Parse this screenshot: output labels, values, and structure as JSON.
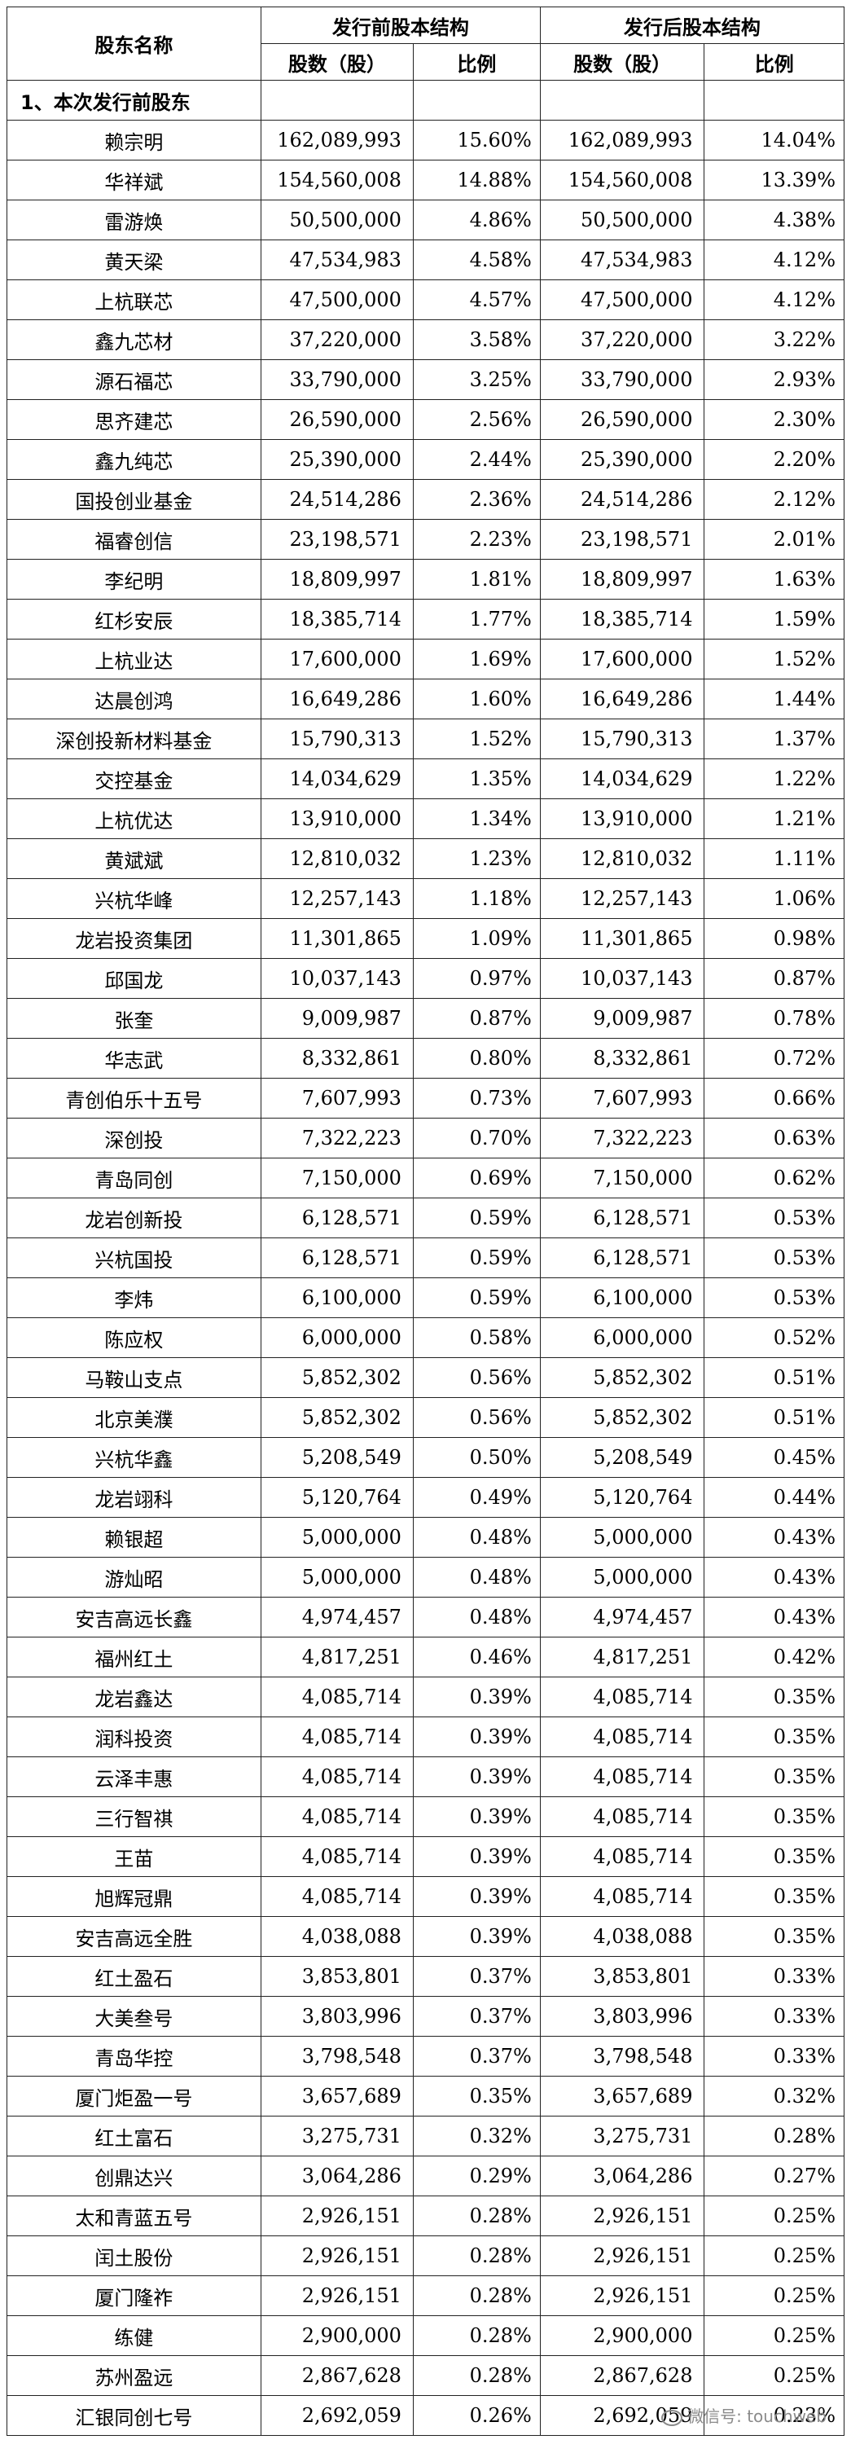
{
  "header": {
    "holder_name": "股东名称",
    "before": "发行前股本结构",
    "after": "发行后股本结构",
    "shares": "股数（股）",
    "ratio": "比例"
  },
  "section_label": "1、本次发行前股东",
  "rows": [
    {
      "name": "赖宗明",
      "pre_shares": "162,089,993",
      "pre_ratio": "15.60%",
      "post_shares": "162,089,993",
      "post_ratio": "14.04%"
    },
    {
      "name": "华祥斌",
      "pre_shares": "154,560,008",
      "pre_ratio": "14.88%",
      "post_shares": "154,560,008",
      "post_ratio": "13.39%"
    },
    {
      "name": "雷游焕",
      "pre_shares": "50,500,000",
      "pre_ratio": "4.86%",
      "post_shares": "50,500,000",
      "post_ratio": "4.38%"
    },
    {
      "name": "黄天梁",
      "pre_shares": "47,534,983",
      "pre_ratio": "4.58%",
      "post_shares": "47,534,983",
      "post_ratio": "4.12%"
    },
    {
      "name": "上杭联芯",
      "pre_shares": "47,500,000",
      "pre_ratio": "4.57%",
      "post_shares": "47,500,000",
      "post_ratio": "4.12%"
    },
    {
      "name": "鑫九芯材",
      "pre_shares": "37,220,000",
      "pre_ratio": "3.58%",
      "post_shares": "37,220,000",
      "post_ratio": "3.22%"
    },
    {
      "name": "源石福芯",
      "pre_shares": "33,790,000",
      "pre_ratio": "3.25%",
      "post_shares": "33,790,000",
      "post_ratio": "2.93%"
    },
    {
      "name": "思齐建芯",
      "pre_shares": "26,590,000",
      "pre_ratio": "2.56%",
      "post_shares": "26,590,000",
      "post_ratio": "2.30%"
    },
    {
      "name": "鑫九纯芯",
      "pre_shares": "25,390,000",
      "pre_ratio": "2.44%",
      "post_shares": "25,390,000",
      "post_ratio": "2.20%"
    },
    {
      "name": "国投创业基金",
      "pre_shares": "24,514,286",
      "pre_ratio": "2.36%",
      "post_shares": "24,514,286",
      "post_ratio": "2.12%"
    },
    {
      "name": "福睿创信",
      "pre_shares": "23,198,571",
      "pre_ratio": "2.23%",
      "post_shares": "23,198,571",
      "post_ratio": "2.01%"
    },
    {
      "name": "李纪明",
      "pre_shares": "18,809,997",
      "pre_ratio": "1.81%",
      "post_shares": "18,809,997",
      "post_ratio": "1.63%"
    },
    {
      "name": "红杉安辰",
      "pre_shares": "18,385,714",
      "pre_ratio": "1.77%",
      "post_shares": "18,385,714",
      "post_ratio": "1.59%"
    },
    {
      "name": "上杭业达",
      "pre_shares": "17,600,000",
      "pre_ratio": "1.69%",
      "post_shares": "17,600,000",
      "post_ratio": "1.52%"
    },
    {
      "name": "达晨创鸿",
      "pre_shares": "16,649,286",
      "pre_ratio": "1.60%",
      "post_shares": "16,649,286",
      "post_ratio": "1.44%"
    },
    {
      "name": "深创投新材料基金",
      "pre_shares": "15,790,313",
      "pre_ratio": "1.52%",
      "post_shares": "15,790,313",
      "post_ratio": "1.37%"
    },
    {
      "name": "交控基金",
      "pre_shares": "14,034,629",
      "pre_ratio": "1.35%",
      "post_shares": "14,034,629",
      "post_ratio": "1.22%"
    },
    {
      "name": "上杭优达",
      "pre_shares": "13,910,000",
      "pre_ratio": "1.34%",
      "post_shares": "13,910,000",
      "post_ratio": "1.21%"
    },
    {
      "name": "黄斌斌",
      "pre_shares": "12,810,032",
      "pre_ratio": "1.23%",
      "post_shares": "12,810,032",
      "post_ratio": "1.11%"
    },
    {
      "name": "兴杭华峰",
      "pre_shares": "12,257,143",
      "pre_ratio": "1.18%",
      "post_shares": "12,257,143",
      "post_ratio": "1.06%"
    },
    {
      "name": "龙岩投资集团",
      "pre_shares": "11,301,865",
      "pre_ratio": "1.09%",
      "post_shares": "11,301,865",
      "post_ratio": "0.98%"
    },
    {
      "name": "邱国龙",
      "pre_shares": "10,037,143",
      "pre_ratio": "0.97%",
      "post_shares": "10,037,143",
      "post_ratio": "0.87%"
    },
    {
      "name": "张奎",
      "pre_shares": "9,009,987",
      "pre_ratio": "0.87%",
      "post_shares": "9,009,987",
      "post_ratio": "0.78%"
    },
    {
      "name": "华志武",
      "pre_shares": "8,332,861",
      "pre_ratio": "0.80%",
      "post_shares": "8,332,861",
      "post_ratio": "0.72%"
    },
    {
      "name": "青创伯乐十五号",
      "pre_shares": "7,607,993",
      "pre_ratio": "0.73%",
      "post_shares": "7,607,993",
      "post_ratio": "0.66%"
    },
    {
      "name": "深创投",
      "pre_shares": "7,322,223",
      "pre_ratio": "0.70%",
      "post_shares": "7,322,223",
      "post_ratio": "0.63%"
    },
    {
      "name": "青岛同创",
      "pre_shares": "7,150,000",
      "pre_ratio": "0.69%",
      "post_shares": "7,150,000",
      "post_ratio": "0.62%"
    },
    {
      "name": "龙岩创新投",
      "pre_shares": "6,128,571",
      "pre_ratio": "0.59%",
      "post_shares": "6,128,571",
      "post_ratio": "0.53%"
    },
    {
      "name": "兴杭国投",
      "pre_shares": "6,128,571",
      "pre_ratio": "0.59%",
      "post_shares": "6,128,571",
      "post_ratio": "0.53%"
    },
    {
      "name": "李炜",
      "pre_shares": "6,100,000",
      "pre_ratio": "0.59%",
      "post_shares": "6,100,000",
      "post_ratio": "0.53%"
    },
    {
      "name": "陈应权",
      "pre_shares": "6,000,000",
      "pre_ratio": "0.58%",
      "post_shares": "6,000,000",
      "post_ratio": "0.52%"
    },
    {
      "name": "马鞍山支点",
      "pre_shares": "5,852,302",
      "pre_ratio": "0.56%",
      "post_shares": "5,852,302",
      "post_ratio": "0.51%"
    },
    {
      "name": "北京美濮",
      "pre_shares": "5,852,302",
      "pre_ratio": "0.56%",
      "post_shares": "5,852,302",
      "post_ratio": "0.51%"
    },
    {
      "name": "兴杭华鑫",
      "pre_shares": "5,208,549",
      "pre_ratio": "0.50%",
      "post_shares": "5,208,549",
      "post_ratio": "0.45%"
    },
    {
      "name": "龙岩翊科",
      "pre_shares": "5,120,764",
      "pre_ratio": "0.49%",
      "post_shares": "5,120,764",
      "post_ratio": "0.44%"
    },
    {
      "name": "赖银超",
      "pre_shares": "5,000,000",
      "pre_ratio": "0.48%",
      "post_shares": "5,000,000",
      "post_ratio": "0.43%"
    },
    {
      "name": "游灿昭",
      "pre_shares": "5,000,000",
      "pre_ratio": "0.48%",
      "post_shares": "5,000,000",
      "post_ratio": "0.43%"
    },
    {
      "name": "安吉高远长鑫",
      "pre_shares": "4,974,457",
      "pre_ratio": "0.48%",
      "post_shares": "4,974,457",
      "post_ratio": "0.43%"
    },
    {
      "name": "福州红土",
      "pre_shares": "4,817,251",
      "pre_ratio": "0.46%",
      "post_shares": "4,817,251",
      "post_ratio": "0.42%"
    },
    {
      "name": "龙岩鑫达",
      "pre_shares": "4,085,714",
      "pre_ratio": "0.39%",
      "post_shares": "4,085,714",
      "post_ratio": "0.35%"
    },
    {
      "name": "润科投资",
      "pre_shares": "4,085,714",
      "pre_ratio": "0.39%",
      "post_shares": "4,085,714",
      "post_ratio": "0.35%"
    },
    {
      "name": "云泽丰惠",
      "pre_shares": "4,085,714",
      "pre_ratio": "0.39%",
      "post_shares": "4,085,714",
      "post_ratio": "0.35%"
    },
    {
      "name": "三行智祺",
      "pre_shares": "4,085,714",
      "pre_ratio": "0.39%",
      "post_shares": "4,085,714",
      "post_ratio": "0.35%"
    },
    {
      "name": "王苗",
      "pre_shares": "4,085,714",
      "pre_ratio": "0.39%",
      "post_shares": "4,085,714",
      "post_ratio": "0.35%"
    },
    {
      "name": "旭辉冠鼎",
      "pre_shares": "4,085,714",
      "pre_ratio": "0.39%",
      "post_shares": "4,085,714",
      "post_ratio": "0.35%"
    },
    {
      "name": "安吉高远全胜",
      "pre_shares": "4,038,088",
      "pre_ratio": "0.39%",
      "post_shares": "4,038,088",
      "post_ratio": "0.35%"
    },
    {
      "name": "红土盈石",
      "pre_shares": "3,853,801",
      "pre_ratio": "0.37%",
      "post_shares": "3,853,801",
      "post_ratio": "0.33%"
    },
    {
      "name": "大美叁号",
      "pre_shares": "3,803,996",
      "pre_ratio": "0.37%",
      "post_shares": "3,803,996",
      "post_ratio": "0.33%"
    },
    {
      "name": "青岛华控",
      "pre_shares": "3,798,548",
      "pre_ratio": "0.37%",
      "post_shares": "3,798,548",
      "post_ratio": "0.33%"
    },
    {
      "name": "厦门炬盈一号",
      "pre_shares": "3,657,689",
      "pre_ratio": "0.35%",
      "post_shares": "3,657,689",
      "post_ratio": "0.32%"
    },
    {
      "name": "红土富石",
      "pre_shares": "3,275,731",
      "pre_ratio": "0.32%",
      "post_shares": "3,275,731",
      "post_ratio": "0.28%"
    },
    {
      "name": "创鼎达兴",
      "pre_shares": "3,064,286",
      "pre_ratio": "0.29%",
      "post_shares": "3,064,286",
      "post_ratio": "0.27%"
    },
    {
      "name": "太和青蓝五号",
      "pre_shares": "2,926,151",
      "pre_ratio": "0.28%",
      "post_shares": "2,926,151",
      "post_ratio": "0.25%"
    },
    {
      "name": "闰土股份",
      "pre_shares": "2,926,151",
      "pre_ratio": "0.28%",
      "post_shares": "2,926,151",
      "post_ratio": "0.25%"
    },
    {
      "name": "厦门隆祚",
      "pre_shares": "2,926,151",
      "pre_ratio": "0.28%",
      "post_shares": "2,926,151",
      "post_ratio": "0.25%"
    },
    {
      "name": "练健",
      "pre_shares": "2,900,000",
      "pre_ratio": "0.28%",
      "post_shares": "2,900,000",
      "post_ratio": "0.25%"
    },
    {
      "name": "苏州盈远",
      "pre_shares": "2,867,628",
      "pre_ratio": "0.28%",
      "post_shares": "2,867,628",
      "post_ratio": "0.25%"
    },
    {
      "name": "汇银同创七号",
      "pre_shares": "2,692,059",
      "pre_ratio": "0.26%",
      "post_shares": "2,692,059",
      "post_ratio": "0.23%"
    }
  ],
  "watermark": "微信号: touchweb"
}
